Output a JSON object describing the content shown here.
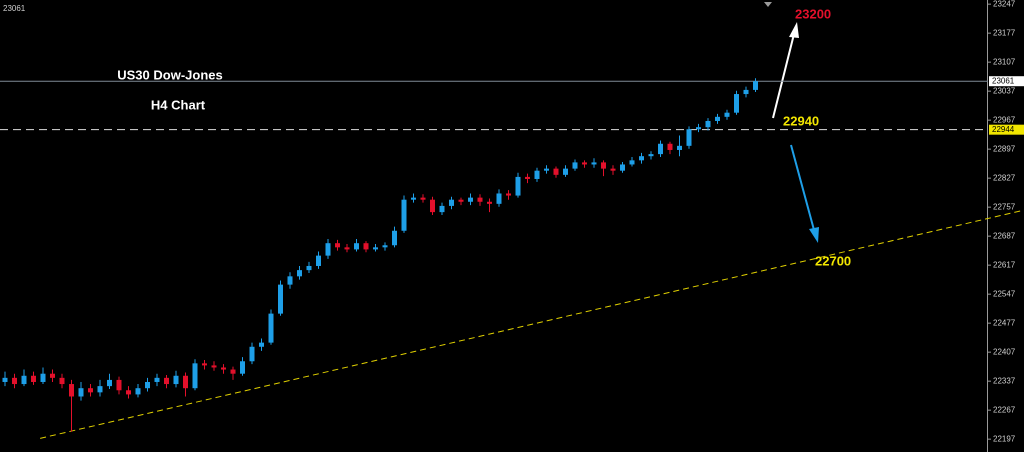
{
  "chart_data": {
    "type": "candlestick",
    "title": "US30 Dow-Jones",
    "subtitle": "H4 Chart",
    "up_color": "#1e9fe8",
    "down_color": "#e3102b",
    "grid": false,
    "ylim": [
      22166,
      23257
    ],
    "yticks": [
      23247,
      23177,
      23107,
      23037,
      22967,
      22897,
      22827,
      22757,
      22687,
      22617,
      22547,
      22477,
      22407,
      22337,
      22267,
      22197
    ],
    "open": [
      22335,
      22345,
      22330,
      22350,
      22335,
      22355,
      22345,
      22330,
      22300,
      22320,
      22310,
      22325,
      22340,
      22315,
      22305,
      22320,
      22335,
      22345,
      22330,
      22350,
      22320,
      22380,
      22375,
      22370,
      22365,
      22355,
      22385,
      22420,
      22430,
      22500,
      22570,
      22590,
      22605,
      22615,
      22640,
      22670,
      22660,
      22655,
      22670,
      22655,
      22660,
      22665,
      22700,
      22775,
      22780,
      22775,
      22745,
      22760,
      22775,
      22770,
      22780,
      22770,
      22765,
      22790,
      22785,
      22830,
      22825,
      22845,
      22850,
      22835,
      22850,
      22865,
      22860,
      22865,
      22850,
      22845,
      22860,
      22870,
      22880,
      22885,
      22910,
      22895,
      22905,
      22945,
      22950,
      22965,
      22975,
      22985,
      23030,
      23040
    ],
    "high": [
      22360,
      22355,
      22365,
      22360,
      22370,
      22365,
      22355,
      22340,
      22335,
      22330,
      22340,
      22355,
      22348,
      22325,
      22330,
      22345,
      22355,
      22352,
      22362,
      22358,
      22390,
      22388,
      22385,
      22378,
      22372,
      22395,
      22430,
      22440,
      22510,
      22580,
      22600,
      22615,
      22625,
      22650,
      22680,
      22678,
      22668,
      22680,
      22675,
      22668,
      22672,
      22710,
      22785,
      22790,
      22788,
      22782,
      22768,
      22782,
      22780,
      22790,
      22788,
      22778,
      22800,
      22798,
      22840,
      22838,
      22852,
      22858,
      22855,
      22858,
      22872,
      22870,
      22875,
      22870,
      22858,
      22866,
      22878,
      22888,
      22892,
      22918,
      22915,
      22930,
      22952,
      22958,
      22972,
      22982,
      22992,
      23038,
      23048,
      23068
    ],
    "low": [
      22325,
      22320,
      22325,
      22328,
      22330,
      22335,
      22320,
      22215,
      22290,
      22300,
      22300,
      22318,
      22305,
      22295,
      22298,
      22312,
      22325,
      22320,
      22322,
      22300,
      22315,
      22365,
      22362,
      22355,
      22340,
      22350,
      22378,
      22410,
      22425,
      22495,
      22560,
      22582,
      22598,
      22608,
      22632,
      22652,
      22648,
      22650,
      22648,
      22650,
      22652,
      22660,
      22695,
      22768,
      22768,
      22738,
      22738,
      22752,
      22762,
      22762,
      22760,
      22745,
      22758,
      22775,
      22780,
      22815,
      22818,
      22838,
      22828,
      22830,
      22845,
      22852,
      22852,
      22832,
      22835,
      22840,
      22855,
      22862,
      22872,
      22878,
      22885,
      22880,
      22898,
      22938,
      22942,
      22958,
      22968,
      22980,
      23022,
      23035
    ],
    "close": [
      22345,
      22330,
      22350,
      22335,
      22355,
      22345,
      22330,
      22300,
      22320,
      22310,
      22325,
      22340,
      22315,
      22305,
      22320,
      22335,
      22345,
      22330,
      22350,
      22320,
      22380,
      22375,
      22370,
      22365,
      22355,
      22385,
      22420,
      22430,
      22500,
      22570,
      22590,
      22605,
      22615,
      22640,
      22670,
      22660,
      22655,
      22670,
      22655,
      22660,
      22665,
      22700,
      22775,
      22780,
      22775,
      22745,
      22760,
      22775,
      22770,
      22780,
      22770,
      22765,
      22790,
      22785,
      22830,
      22825,
      22845,
      22850,
      22835,
      22850,
      22865,
      22860,
      22865,
      22850,
      22845,
      22860,
      22870,
      22880,
      22885,
      22910,
      22895,
      22905,
      22945,
      22950,
      22965,
      22975,
      22985,
      23030,
      23040,
      23061
    ],
    "current_price": 23061,
    "level_price": 22944,
    "support_line": {
      "from": [
        3.7,
        22199
      ],
      "to": [
        107.3,
        22750
      ]
    },
    "annotations": {
      "target_up": "23200",
      "level": "22940",
      "target_down": "22700"
    }
  }
}
